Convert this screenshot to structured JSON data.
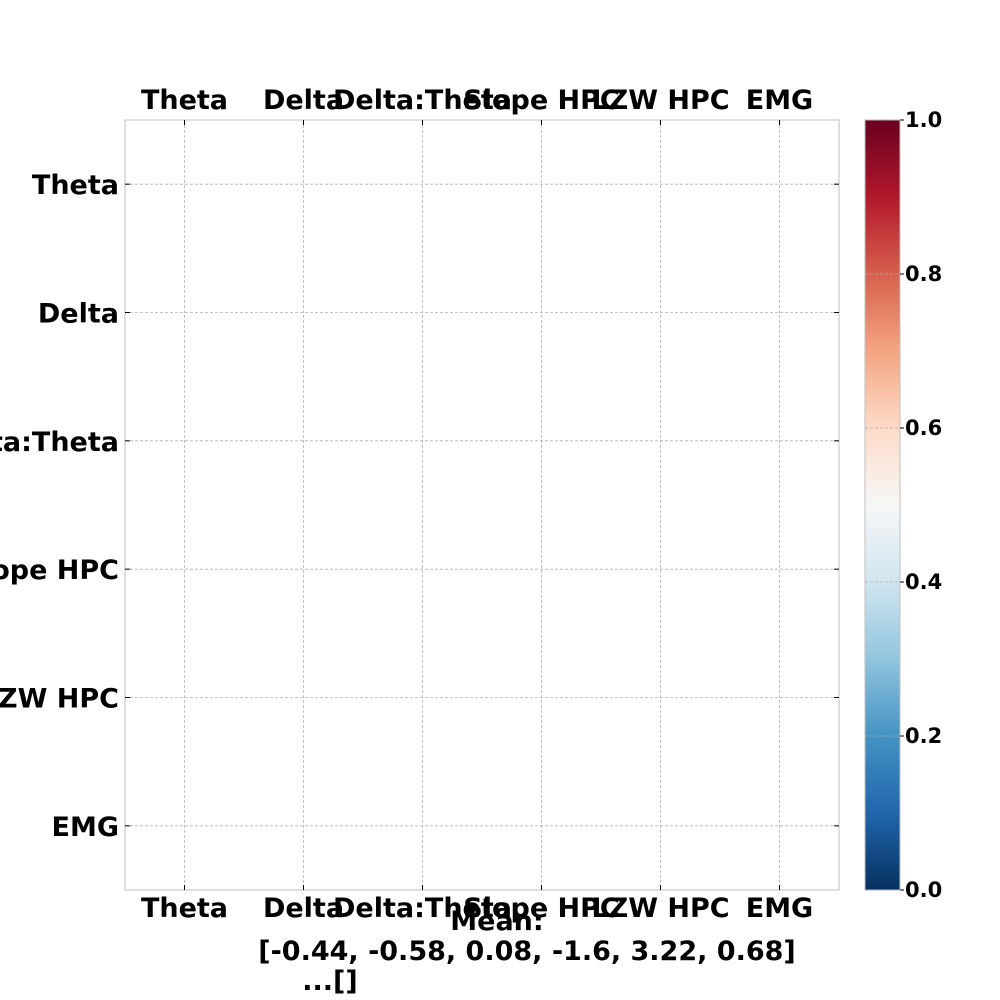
{
  "chart_data": {
    "type": "heatmap",
    "title": "",
    "xlabel": "",
    "ylabel": "",
    "x_categories": [
      "Theta",
      "Delta",
      "Delta:Theta",
      "Slope HPC",
      "LZW HPC",
      "EMG"
    ],
    "y_categories": [
      "Theta",
      "Delta",
      "Delta:Theta",
      "Slope HPC",
      "LZW HPC",
      "EMG"
    ],
    "values": [],
    "grid": true,
    "colorbar": {
      "colormap": "RdBu_r",
      "range": [
        0,
        1
      ],
      "ticks": [
        "0.0",
        "0.2",
        "0.4",
        "0.6",
        "0.8",
        "1.0"
      ],
      "placement": "right"
    },
    "annotation": {
      "line1": "Mean:",
      "line2": "[-0.44, -0.58, 0.08, -1.6, 3.22, 0.68]",
      "line3": "...[]"
    }
  }
}
